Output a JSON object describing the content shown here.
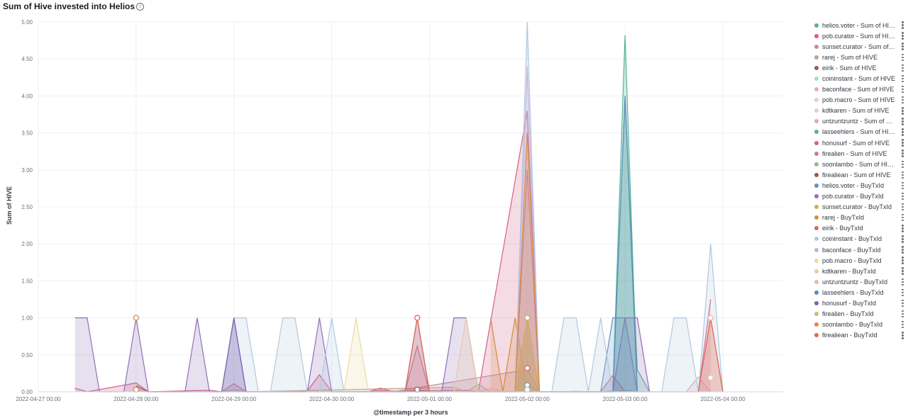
{
  "panel": {
    "title": "Sum of Hive invested into Helios",
    "info_icon": "info-circle-icon"
  },
  "chart_data": {
    "type": "area",
    "xlabel": "@timestamp per 3 hours",
    "ylabel": "Sum of HIVE",
    "x_range": [
      "2022-04-27 00:00",
      "2022-05-04 00:00"
    ],
    "ylim": [
      0,
      5
    ],
    "y_ticks": [
      "0.00",
      "0.50",
      "1.00",
      "1.50",
      "2.00",
      "2.50",
      "3.00",
      "3.50",
      "4.00",
      "4.50",
      "5.00"
    ],
    "x_ticks": [
      "2022-04-27 00:00",
      "2022-04-28 00:00",
      "2022-04-29 00:00",
      "2022-04-30 00:00",
      "2022-05-01 00:00",
      "2022-05-02 00:00",
      "2022-05-03 00:00",
      "2022-05-04 00:00"
    ],
    "grid": true,
    "legend_position": "right",
    "series": [
      {
        "name": "helios.voter - Sum of HIVE",
        "color": "#54b399",
        "points": [
          [
            "2022-05-02 00:00",
            0.1
          ],
          [
            "2022-05-02 03:00",
            0
          ],
          [
            "2022-05-02 21:00",
            0
          ],
          [
            "2022-05-03 00:00",
            4.82
          ],
          [
            "2022-05-03 03:00",
            0
          ]
        ]
      },
      {
        "name": "pob.curator - Sum of HIVE",
        "color": "#d36086",
        "points": [
          [
            "2022-04-27 09:00",
            0.05
          ],
          [
            "2022-04-27 12:00",
            0
          ],
          [
            "2022-04-28 00:00",
            0.12
          ],
          [
            "2022-04-28 03:00",
            0
          ],
          [
            "2022-04-28 18:00",
            0.02
          ],
          [
            "2022-04-28 21:00",
            0
          ],
          [
            "2022-04-29 00:00",
            0.11
          ],
          [
            "2022-04-29 03:00",
            0
          ],
          [
            "2022-04-29 18:00",
            0.01
          ],
          [
            "2022-04-29 21:00",
            0.23
          ],
          [
            "2022-04-30 00:00",
            0
          ],
          [
            "2022-05-01 09:00",
            0.02
          ],
          [
            "2022-05-01 12:00",
            0
          ],
          [
            "2022-05-02 00:00",
            3.8
          ],
          [
            "2022-05-02 03:00",
            0
          ],
          [
            "2022-05-02 18:00",
            0
          ],
          [
            "2022-05-02 21:00",
            0.22
          ],
          [
            "2022-05-03 00:00",
            0
          ]
        ]
      },
      {
        "name": "sunset.curator - Sum of HIVE",
        "color": "#c8899c",
        "points": [
          [
            "2022-04-30 09:00",
            0
          ],
          [
            "2022-04-30 12:00",
            0.02
          ],
          [
            "2022-04-30 15:00",
            0
          ],
          [
            "2022-05-02 00:00",
            0.3
          ],
          [
            "2022-05-02 03:00",
            0
          ]
        ]
      },
      {
        "name": "rarej - Sum of HIVE",
        "color": "#b9a888",
        "points": [
          [
            "2022-04-28 21:00",
            0
          ],
          [
            "2022-04-29 00:00",
            0.03
          ],
          [
            "2022-04-29 03:00",
            0
          ],
          [
            "2022-05-01 06:00",
            0.06
          ],
          [
            "2022-05-01 09:00",
            0
          ],
          [
            "2022-05-02 21:00",
            0
          ],
          [
            "2022-05-03 00:00",
            0.02
          ],
          [
            "2022-05-03 03:00",
            0
          ]
        ]
      },
      {
        "name": "eirik - Sum of HIVE",
        "color": "#9b5b4f",
        "points": [
          [
            "2022-04-28 00:00",
            0.08
          ],
          [
            "2022-04-28 03:00",
            0
          ],
          [
            "2022-04-30 18:00",
            0
          ],
          [
            "2022-04-30 21:00",
            0.02
          ],
          [
            "2022-05-01 00:00",
            0
          ]
        ]
      },
      {
        "name": "coininstant - Sum of HIVE",
        "color": "#a8dcc8",
        "points": [
          [
            "2022-05-02 18:00",
            0
          ],
          [
            "2022-05-02 21:00",
            0.02
          ],
          [
            "2022-05-03 00:00",
            0
          ]
        ]
      },
      {
        "name": "baconface - Sum of HIVE",
        "color": "#e7a9b8",
        "points": [
          [
            "2022-05-01 12:00",
            0
          ],
          [
            "2022-05-01 15:00",
            0.05
          ],
          [
            "2022-05-01 18:00",
            0
          ]
        ]
      },
      {
        "name": "pob.macro - Sum of HIVE",
        "color": "#e7c9d0",
        "points": [
          [
            "2022-05-02 00:00",
            0.05
          ],
          [
            "2022-05-02 03:00",
            0
          ]
        ]
      },
      {
        "name": "kdtkaren - Sum of HIVE",
        "color": "#d5d5d5",
        "points": [
          [
            "2022-05-02 09:00",
            0
          ],
          [
            "2022-05-02 12:00",
            0.01
          ],
          [
            "2022-05-02 15:00",
            0
          ]
        ]
      },
      {
        "name": "untzuntzuntz - Sum of HIVE",
        "color": "#e0a9b5",
        "points": [
          [
            "2022-05-03 15:00",
            0
          ],
          [
            "2022-05-03 18:00",
            0.2
          ],
          [
            "2022-05-03 21:00",
            0
          ]
        ]
      },
      {
        "name": "lasseehlers - Sum of HIVE",
        "color": "#54b399",
        "points": [
          [
            "2022-05-02 21:00",
            0
          ],
          [
            "2022-05-03 00:00",
            4.0
          ],
          [
            "2022-05-03 03:00",
            0.3
          ],
          [
            "2022-05-03 06:00",
            0
          ]
        ]
      },
      {
        "name": "honusurf - Sum of HIVE",
        "color": "#d36086",
        "points": [
          [
            "2022-04-30 09:00",
            0
          ],
          [
            "2022-04-30 12:00",
            0.05
          ],
          [
            "2022-04-30 15:00",
            0
          ],
          [
            "2022-05-01 21:00",
            0
          ],
          [
            "2022-05-02 00:00",
            3.0
          ],
          [
            "2022-05-02 03:00",
            0
          ],
          [
            "2022-05-03 18:00",
            0
          ],
          [
            "2022-05-03 21:00",
            1.25
          ]
        ]
      },
      {
        "name": "firealien - Sum of HIVE",
        "color": "#c57e9b",
        "points": [
          [
            "2022-04-30 18:00",
            0
          ],
          [
            "2022-04-30 21:00",
            0.62
          ],
          [
            "2022-05-01 00:00",
            0
          ]
        ]
      },
      {
        "name": "soonlambo - Sum of HIVE",
        "color": "#a8ad8b",
        "points": [
          [
            "2022-05-01 09:00",
            0
          ],
          [
            "2022-05-01 12:00",
            0.1
          ],
          [
            "2022-05-01 15:00",
            0
          ]
        ]
      },
      {
        "name": "firealiean - Sum of HIVE",
        "color": "#9b5b4f",
        "points": [
          [
            "2022-05-01 21:00",
            0
          ],
          [
            "2022-05-02 00:00",
            1.0
          ],
          [
            "2022-05-02 03:00",
            0
          ]
        ]
      },
      {
        "name": "helios.voter - BuyTxId",
        "color": "#6092c0",
        "points": [
          [
            "2022-05-02 18:00",
            0
          ],
          [
            "2022-05-02 21:00",
            1
          ],
          [
            "2022-05-03 00:00",
            1
          ],
          [
            "2022-05-03 03:00",
            0
          ]
        ]
      },
      {
        "name": "pob.curator - BuyTxId",
        "color": "#9170b8",
        "points": [
          [
            "2022-04-27 09:00",
            1
          ],
          [
            "2022-04-27 12:00",
            1
          ],
          [
            "2022-04-27 15:00",
            0
          ],
          [
            "2022-04-27 21:00",
            0
          ],
          [
            "2022-04-28 00:00",
            1
          ],
          [
            "2022-04-28 03:00",
            0
          ],
          [
            "2022-04-28 12:00",
            0
          ],
          [
            "2022-04-28 15:00",
            1
          ],
          [
            "2022-04-28 18:00",
            0
          ],
          [
            "2022-04-28 21:00",
            0
          ],
          [
            "2022-04-29 00:00",
            1
          ],
          [
            "2022-04-29 03:00",
            0
          ],
          [
            "2022-04-29 18:00",
            0
          ],
          [
            "2022-04-29 21:00",
            1
          ],
          [
            "2022-04-30 00:00",
            0
          ],
          [
            "2022-04-30 18:00",
            0
          ],
          [
            "2022-04-30 21:00",
            1
          ],
          [
            "2022-05-01 00:00",
            0
          ],
          [
            "2022-05-01 03:00",
            0
          ],
          [
            "2022-05-01 06:00",
            1
          ],
          [
            "2022-05-01 09:00",
            1
          ],
          [
            "2022-05-01 12:00",
            0
          ],
          [
            "2022-05-02 21:00",
            0
          ],
          [
            "2022-05-03 00:00",
            1
          ],
          [
            "2022-05-03 03:00",
            1
          ],
          [
            "2022-05-03 06:00",
            0
          ]
        ]
      },
      {
        "name": "sunset.curator - BuyTxId",
        "color": "#cab14c",
        "points": [
          [
            "2022-05-01 21:00",
            0
          ],
          [
            "2022-05-02 00:00",
            1
          ],
          [
            "2022-05-02 03:00",
            0
          ]
        ]
      },
      {
        "name": "rarej - BuyTxId",
        "color": "#d68b40",
        "points": [
          [
            "2022-05-01 15:00",
            1
          ],
          [
            "2022-05-01 18:00",
            0
          ],
          [
            "2022-05-01 21:00",
            1
          ],
          [
            "2022-05-02 00:00",
            0
          ]
        ]
      },
      {
        "name": "eirik - BuyTxId",
        "color": "#e06752",
        "points": [
          [
            "2022-04-30 18:00",
            0
          ],
          [
            "2022-04-30 21:00",
            1
          ],
          [
            "2022-05-01 00:00",
            0
          ]
        ]
      },
      {
        "name": "coininstant - BuyTxId",
        "color": "#b0c9e0",
        "points": [
          [
            "2022-04-28 21:00",
            0
          ],
          [
            "2022-04-29 00:00",
            1
          ],
          [
            "2022-04-29 03:00",
            1
          ],
          [
            "2022-04-29 06:00",
            0
          ],
          [
            "2022-04-29 09:00",
            0
          ],
          [
            "2022-04-29 12:00",
            1
          ],
          [
            "2022-04-29 15:00",
            1
          ],
          [
            "2022-04-29 18:00",
            0
          ],
          [
            "2022-04-29 21:00",
            0
          ],
          [
            "2022-04-30 00:00",
            1
          ],
          [
            "2022-04-30 03:00",
            0
          ],
          [
            "2022-05-01 21:00",
            0
          ],
          [
            "2022-05-02 00:00",
            5
          ],
          [
            "2022-05-02 03:00",
            0
          ],
          [
            "2022-05-02 06:00",
            0
          ],
          [
            "2022-05-02 09:00",
            1
          ],
          [
            "2022-05-02 12:00",
            1
          ],
          [
            "2022-05-02 15:00",
            0
          ],
          [
            "2022-05-02 18:00",
            1
          ],
          [
            "2022-05-02 21:00",
            0
          ],
          [
            "2022-05-03 09:00",
            0
          ],
          [
            "2022-05-03 12:00",
            1
          ],
          [
            "2022-05-03 15:00",
            1
          ],
          [
            "2022-05-03 18:00",
            0
          ],
          [
            "2022-05-03 21:00",
            2
          ],
          [
            "2022-05-04 00:00",
            0
          ]
        ]
      },
      {
        "name": "baconface - BuyTxId",
        "color": "#c5b3dc",
        "points": [
          [
            "2022-05-01 21:00",
            0
          ],
          [
            "2022-05-02 00:00",
            4.4
          ],
          [
            "2022-05-02 03:00",
            0
          ]
        ]
      },
      {
        "name": "pob.macro - BuyTxId",
        "color": "#eadba0",
        "points": [
          [
            "2022-04-30 03:00",
            0
          ],
          [
            "2022-04-30 06:00",
            1
          ],
          [
            "2022-04-30 09:00",
            0
          ]
        ]
      },
      {
        "name": "kdtkaren - BuyTxId",
        "color": "#edc7a6",
        "points": [
          [
            "2022-05-01 06:00",
            0
          ],
          [
            "2022-05-01 09:00",
            1
          ],
          [
            "2022-05-01 12:00",
            0
          ]
        ]
      },
      {
        "name": "untzuntzuntz - BuyTxId",
        "color": "#f3b4a9",
        "points": [
          [
            "2022-05-03 18:00",
            0
          ],
          [
            "2022-05-03 21:00",
            1
          ],
          [
            "2022-05-04 00:00",
            0
          ]
        ]
      },
      {
        "name": "lasseehlers - BuyTxId",
        "color": "#5a8db8",
        "points": [
          [
            "2022-05-02 21:00",
            0
          ],
          [
            "2022-05-03 00:00",
            4.0
          ],
          [
            "2022-05-03 03:00",
            0
          ]
        ]
      },
      {
        "name": "honusurf - BuyTxId",
        "color": "#7b62b0",
        "points": [
          [
            "2022-04-28 21:00",
            0
          ],
          [
            "2022-04-29 00:00",
            1
          ],
          [
            "2022-04-29 03:00",
            0
          ]
        ]
      },
      {
        "name": "firealien - BuyTxId",
        "color": "#d4b86b",
        "points": [
          [
            "2022-05-01 21:00",
            0
          ],
          [
            "2022-05-02 00:00",
            1
          ],
          [
            "2022-05-02 03:00",
            0
          ]
        ]
      },
      {
        "name": "soonlambo - BuyTxId",
        "color": "#d68b40",
        "points": [
          [
            "2022-05-01 21:00",
            0
          ],
          [
            "2022-05-02 00:00",
            3.5
          ],
          [
            "2022-05-02 03:00",
            0
          ]
        ]
      },
      {
        "name": "firealiean - BuyTxId",
        "color": "#e06752",
        "points": [
          [
            "2022-05-03 18:00",
            0
          ],
          [
            "2022-05-03 21:00",
            1
          ],
          [
            "2022-05-04 00:00",
            0
          ]
        ]
      }
    ],
    "highlight_points": [
      {
        "x": "2022-04-28 00:00",
        "y": 1.0,
        "color": "#d68b40"
      },
      {
        "x": "2022-04-28 00:00",
        "y": 0.03,
        "color": "#d68b40"
      },
      {
        "x": "2022-04-30 21:00",
        "y": 1.0,
        "color": "#e06752"
      },
      {
        "x": "2022-04-30 21:00",
        "y": 0.03,
        "color": "#9b5b4f"
      },
      {
        "x": "2022-05-02 00:00",
        "y": 1.0,
        "color": "#cab14c"
      },
      {
        "x": "2022-05-02 00:00",
        "y": 0.32,
        "color": "#d36086"
      },
      {
        "x": "2022-05-02 00:00",
        "y": 0.09,
        "color": "#54b399"
      },
      {
        "x": "2022-05-02 00:00",
        "y": 0.03,
        "color": "#b0c9e0"
      },
      {
        "x": "2022-05-03 21:00",
        "y": 1.0,
        "color": "#f3b4a9"
      },
      {
        "x": "2022-05-03 21:00",
        "y": 0.19,
        "color": "#edc7a6"
      }
    ]
  }
}
